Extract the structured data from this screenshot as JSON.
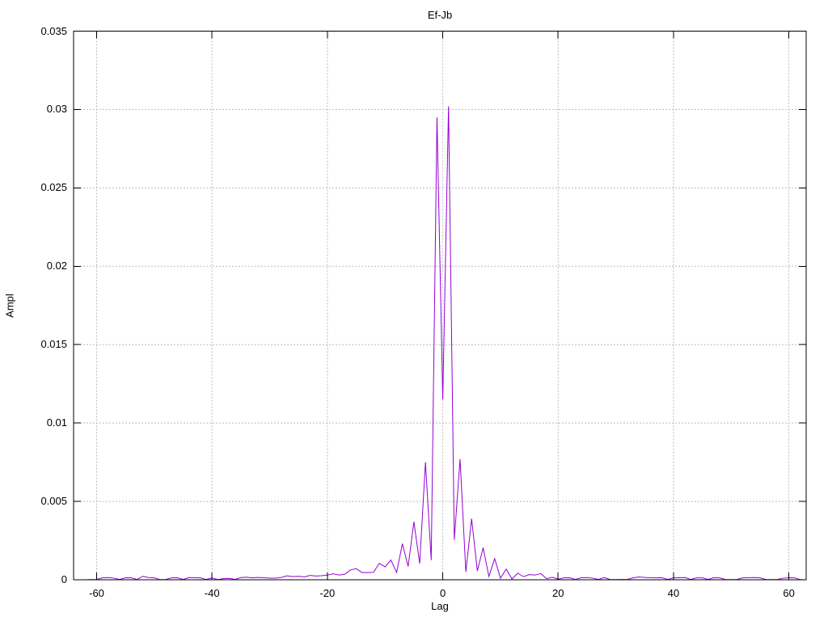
{
  "figure": {
    "title": "Ef-Jb",
    "xlabel": "Lag",
    "ylabel": "Ampl"
  },
  "chart_data": {
    "type": "line",
    "title": "Ef-Jb",
    "xlabel": "Lag",
    "ylabel": "Ampl",
    "xlim": [
      -64,
      63
    ],
    "ylim": [
      0,
      0.035
    ],
    "grid": true,
    "legend": "none",
    "line_color": "#9400D3",
    "grid_color": "#bbbbbb",
    "xticks": [
      {
        "v": -60,
        "label": "-60"
      },
      {
        "v": -40,
        "label": "-40"
      },
      {
        "v": -20,
        "label": "-20"
      },
      {
        "v": 0,
        "label": "0"
      },
      {
        "v": 20,
        "label": "20"
      },
      {
        "v": 40,
        "label": "40"
      },
      {
        "v": 60,
        "label": "60"
      }
    ],
    "yticks": [
      {
        "v": 0,
        "label": "0"
      },
      {
        "v": 0.005,
        "label": "0.005"
      },
      {
        "v": 0.01,
        "label": "0.01"
      },
      {
        "v": 0.015,
        "label": "0.015"
      },
      {
        "v": 0.02,
        "label": "0.02"
      },
      {
        "v": 0.025,
        "label": "0.025"
      },
      {
        "v": 0.03,
        "label": "0.03"
      },
      {
        "v": 0.035,
        "label": "0.035"
      }
    ],
    "x": [
      -64,
      -63,
      -62,
      -61,
      -60,
      -59,
      -58,
      -57,
      -56,
      -55,
      -54,
      -53,
      -52,
      -51,
      -50,
      -49,
      -48,
      -47,
      -46,
      -45,
      -44,
      -43,
      -42,
      -41,
      -40,
      -39,
      -38,
      -37,
      -36,
      -35,
      -34,
      -33,
      -32,
      -31,
      -30,
      -29,
      -28,
      -27,
      -26,
      -25,
      -24,
      -23,
      -22,
      -21,
      -20,
      -19,
      -18,
      -17,
      -16,
      -15,
      -14,
      -13,
      -12,
      -11,
      -10,
      -9,
      -8,
      -7,
      -6,
      -5,
      -4,
      -3,
      -2,
      -1,
      0,
      1,
      2,
      3,
      4,
      5,
      6,
      7,
      8,
      9,
      10,
      11,
      12,
      13,
      14,
      15,
      16,
      17,
      18,
      19,
      20,
      21,
      22,
      23,
      24,
      25,
      26,
      27,
      28,
      29,
      30,
      31,
      32,
      33,
      34,
      35,
      36,
      37,
      38,
      39,
      40,
      41,
      42,
      43,
      44,
      45,
      46,
      47,
      48,
      49,
      50,
      51,
      52,
      53,
      54,
      55,
      56,
      57,
      58,
      59,
      60,
      61,
      62,
      63
    ],
    "values": [
      0.0,
      0.0,
      0.0,
      1e-05,
      2e-05,
      0.00012,
      0.00014,
      0.0001,
      2e-05,
      0.00013,
      0.00012,
      2e-05,
      0.00022,
      0.00014,
      0.00012,
      1e-05,
      2e-05,
      0.00012,
      0.00013,
      2e-05,
      0.00014,
      0.00013,
      0.00012,
      2e-05,
      0.00012,
      1e-05,
      8e-05,
      9e-05,
      2e-05,
      0.00014,
      0.00016,
      0.00012,
      0.00015,
      0.00013,
      0.0001,
      0.0001,
      0.00015,
      0.00025,
      0.0002,
      0.00022,
      0.00018,
      0.00028,
      0.00024,
      0.00026,
      0.0003,
      0.00038,
      0.0003,
      0.00035,
      0.00063,
      0.00071,
      0.00046,
      0.00046,
      0.00048,
      0.00105,
      0.00082,
      0.00126,
      0.00046,
      0.0023,
      0.00085,
      0.0037,
      0.00103,
      0.0075,
      0.00125,
      0.0295,
      0.0115,
      0.0302,
      0.00255,
      0.0077,
      0.0005,
      0.0039,
      0.00056,
      0.00205,
      0.00021,
      0.00135,
      0.0001,
      0.00068,
      5e-05,
      0.00042,
      0.0002,
      0.00033,
      0.0003,
      0.00039,
      7e-05,
      0.00016,
      4e-05,
      0.00012,
      0.00013,
      2e-05,
      0.00013,
      0.00014,
      0.0001,
      2e-05,
      0.00014,
      2e-05,
      1e-05,
      2e-05,
      2e-05,
      0.00012,
      0.00018,
      0.00015,
      0.00013,
      0.00012,
      0.00013,
      2e-05,
      0.00012,
      0.00013,
      0.00014,
      2e-05,
      0.00012,
      0.00012,
      2e-05,
      0.00013,
      0.00012,
      2e-05,
      1e-05,
      2e-05,
      0.00012,
      0.00013,
      0.00014,
      0.00012,
      2e-05,
      1e-05,
      2e-05,
      0.0001,
      0.00013,
      0.00012,
      1e-05,
      0.0
    ]
  }
}
